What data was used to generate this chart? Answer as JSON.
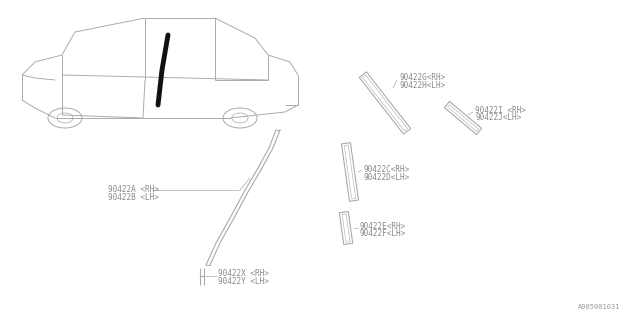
{
  "bg_color": "#ffffff",
  "gc": "#aaaaaa",
  "pc": "#888888",
  "lc": "#aaaaaa",
  "footnote": "A905001031",
  "labels": {
    "G_H": [
      "90422G<RH>",
      "90422H<LH>"
    ],
    "I_J": [
      "90422I <RH>",
      "90422J<LH>"
    ],
    "C_D": [
      "90422C<RH>",
      "90422D<LH>"
    ],
    "E_F": [
      "90422E<RH>",
      "90422F<LH>"
    ],
    "A_B": [
      "90422A <RH>",
      "90422B <LH>"
    ],
    "X_Y": [
      "90422X <RH>",
      "90422Y <LH>"
    ]
  },
  "font_size": 5.5
}
